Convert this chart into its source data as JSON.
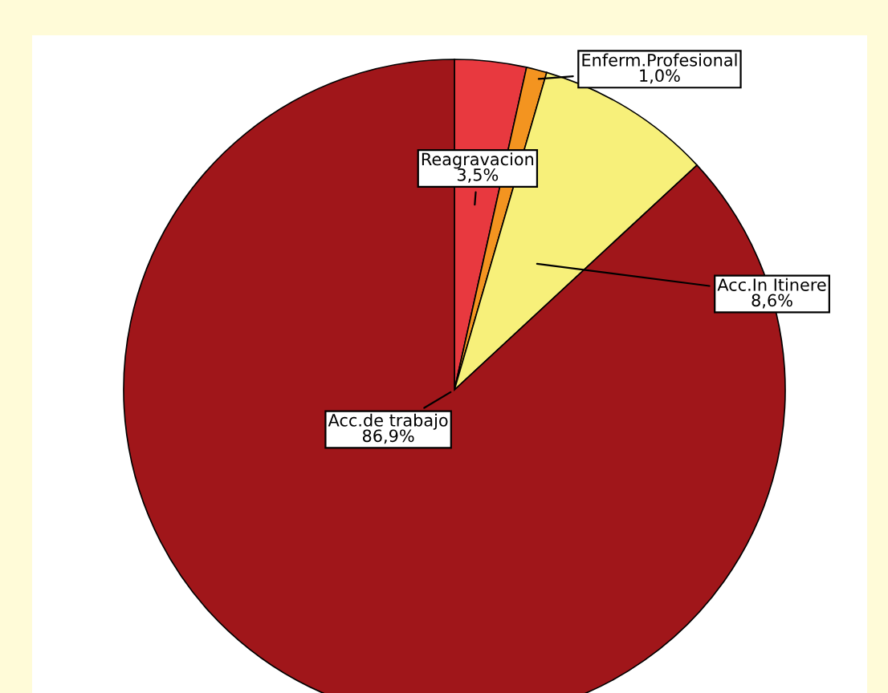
{
  "chart_data": {
    "type": "pie",
    "categories": [
      "Reagravacion",
      "Enferm.Profesional",
      "Acc.In Itinere",
      "Acc.de trabajo"
    ],
    "values": [
      3.5,
      1.0,
      8.6,
      86.9
    ],
    "value_labels": [
      "3,5%",
      "1,0%",
      "8,6%",
      "86,9%"
    ],
    "colors": [
      "#e8393f",
      "#f39420",
      "#f7f07a",
      "#a0161a"
    ],
    "legend": false
  }
}
